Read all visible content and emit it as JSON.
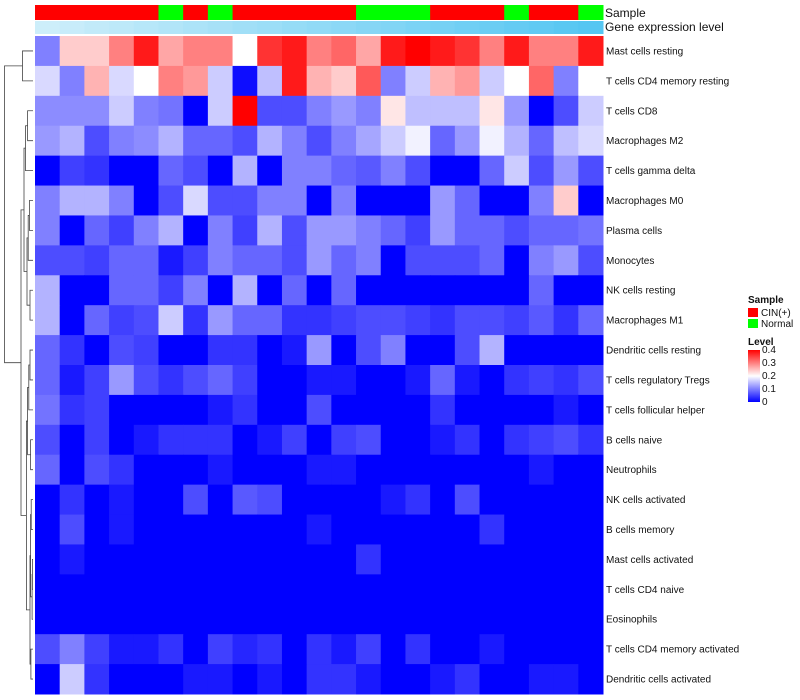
{
  "chart_data": {
    "type": "heatmap",
    "title": "",
    "annotation_tracks": [
      "Sample",
      "Gene expression level"
    ],
    "sample_groups": [
      "CIN",
      "CIN",
      "CIN",
      "CIN",
      "CIN",
      "Normal",
      "CIN",
      "Normal",
      "CIN",
      "CIN",
      "CIN",
      "CIN",
      "CIN",
      "Normal",
      "Normal",
      "Normal",
      "CIN",
      "CIN",
      "CIN",
      "Normal",
      "CIN",
      "CIN",
      "Normal"
    ],
    "rows": [
      "Mast cells resting",
      "T cells CD4 memory resting",
      "T cells CD8",
      "Macrophages M2",
      "T cells gamma delta",
      "Macrophages M0",
      "Plasma cells",
      "Monocytes",
      "NK cells resting",
      "Macrophages M1",
      "Dendritic cells resting",
      "T cells regulatory  Tregs",
      "T cells follicular helper",
      "B cells naive",
      "Neutrophils",
      "NK cells activated",
      "B cells memory",
      "Mast cells activated",
      "T cells CD4 naive",
      "Eosinophils",
      "T cells CD4 memory activated",
      "Dendritic cells activated"
    ],
    "values": [
      [
        0.1,
        0.24,
        0.24,
        0.3,
        0.38,
        0.27,
        0.3,
        0.3,
        0.2,
        0.36,
        0.38,
        0.3,
        0.32,
        0.27,
        0.38,
        0.4,
        0.38,
        0.36,
        0.3,
        0.38,
        0.3,
        0.3,
        0.38
      ],
      [
        0.17,
        0.1,
        0.26,
        0.17,
        0.2,
        0.3,
        0.28,
        0.16,
        0.01,
        0.15,
        0.38,
        0.26,
        0.24,
        0.33,
        0.1,
        0.16,
        0.26,
        0.28,
        0.16,
        0.2,
        0.32,
        0.1,
        0.2
      ],
      [
        0.11,
        0.11,
        0.11,
        0.16,
        0.1,
        0.09,
        0.0,
        0.16,
        0.4,
        0.06,
        0.06,
        0.1,
        0.12,
        0.1,
        0.22,
        0.15,
        0.15,
        0.15,
        0.22,
        0.12,
        0.0,
        0.06,
        0.16
      ],
      [
        0.12,
        0.14,
        0.06,
        0.1,
        0.11,
        0.14,
        0.08,
        0.08,
        0.06,
        0.14,
        0.1,
        0.06,
        0.1,
        0.13,
        0.16,
        0.19,
        0.08,
        0.12,
        0.19,
        0.14,
        0.08,
        0.15,
        0.17
      ],
      [
        0.0,
        0.05,
        0.04,
        0.0,
        0.0,
        0.08,
        0.06,
        0.0,
        0.14,
        0.0,
        0.1,
        0.1,
        0.08,
        0.07,
        0.1,
        0.06,
        0.0,
        0.0,
        0.08,
        0.16,
        0.06,
        0.12,
        0.06
      ],
      [
        0.1,
        0.14,
        0.14,
        0.1,
        0.0,
        0.06,
        0.17,
        0.06,
        0.06,
        0.1,
        0.1,
        0.0,
        0.1,
        0.0,
        0.0,
        0.0,
        0.12,
        0.08,
        0.0,
        0.0,
        0.1,
        0.24,
        0.0
      ],
      [
        0.1,
        0.0,
        0.08,
        0.05,
        0.1,
        0.14,
        0.0,
        0.1,
        0.05,
        0.14,
        0.06,
        0.12,
        0.12,
        0.1,
        0.08,
        0.05,
        0.12,
        0.08,
        0.08,
        0.06,
        0.08,
        0.08,
        0.09
      ],
      [
        0.06,
        0.06,
        0.05,
        0.08,
        0.08,
        0.02,
        0.05,
        0.1,
        0.08,
        0.08,
        0.06,
        0.12,
        0.08,
        0.1,
        0.0,
        0.06,
        0.06,
        0.06,
        0.08,
        0.0,
        0.1,
        0.12,
        0.06
      ],
      [
        0.14,
        0.0,
        0.0,
        0.08,
        0.08,
        0.05,
        0.1,
        0.0,
        0.14,
        0.0,
        0.08,
        0.0,
        0.08,
        0.0,
        0.0,
        0.0,
        0.0,
        0.0,
        0.0,
        0.0,
        0.08,
        0.0,
        0.0
      ],
      [
        0.14,
        0.0,
        0.08,
        0.05,
        0.06,
        0.16,
        0.04,
        0.12,
        0.08,
        0.08,
        0.04,
        0.04,
        0.05,
        0.06,
        0.06,
        0.05,
        0.04,
        0.06,
        0.06,
        0.05,
        0.07,
        0.04,
        0.08
      ],
      [
        0.08,
        0.04,
        0.0,
        0.06,
        0.05,
        0.0,
        0.0,
        0.04,
        0.04,
        0.0,
        0.02,
        0.12,
        0.0,
        0.06,
        0.1,
        0.0,
        0.0,
        0.06,
        0.14,
        0.0,
        0.0,
        0.0,
        0.0
      ],
      [
        0.08,
        0.02,
        0.05,
        0.12,
        0.06,
        0.04,
        0.06,
        0.08,
        0.05,
        0.0,
        0.0,
        0.02,
        0.02,
        0.0,
        0.0,
        0.02,
        0.08,
        0.02,
        0.0,
        0.04,
        0.05,
        0.04,
        0.06
      ],
      [
        0.09,
        0.04,
        0.05,
        0.0,
        0.0,
        0.0,
        0.0,
        0.02,
        0.04,
        0.0,
        0.0,
        0.06,
        0.0,
        0.0,
        0.0,
        0.0,
        0.04,
        0.0,
        0.0,
        0.0,
        0.0,
        0.02,
        0.0
      ],
      [
        0.06,
        0.0,
        0.05,
        0.0,
        0.02,
        0.04,
        0.04,
        0.04,
        0.0,
        0.02,
        0.05,
        0.0,
        0.05,
        0.06,
        0.0,
        0.0,
        0.02,
        0.04,
        0.0,
        0.04,
        0.05,
        0.06,
        0.04
      ],
      [
        0.08,
        0.0,
        0.06,
        0.04,
        0.0,
        0.0,
        0.0,
        0.02,
        0.0,
        0.0,
        0.0,
        0.02,
        0.02,
        0.0,
        0.0,
        0.0,
        0.0,
        0.0,
        0.0,
        0.0,
        0.02,
        0.0,
        0.0
      ],
      [
        0.0,
        0.04,
        0.0,
        0.02,
        0.0,
        0.0,
        0.06,
        0.0,
        0.07,
        0.06,
        0.0,
        0.0,
        0.0,
        0.0,
        0.02,
        0.04,
        0.0,
        0.06,
        0.0,
        0.0,
        0.0,
        0.0,
        0.0
      ],
      [
        0.0,
        0.06,
        0.0,
        0.02,
        0.0,
        0.0,
        0.0,
        0.0,
        0.0,
        0.0,
        0.0,
        0.02,
        0.0,
        0.0,
        0.0,
        0.0,
        0.0,
        0.0,
        0.04,
        0.0,
        0.0,
        0.0,
        0.0
      ],
      [
        0.0,
        0.02,
        0.0,
        0.0,
        0.0,
        0.0,
        0.0,
        0.0,
        0.0,
        0.0,
        0.0,
        0.0,
        0.0,
        0.04,
        0.0,
        0.0,
        0.0,
        0.0,
        0.0,
        0.0,
        0.0,
        0.0,
        0.0
      ],
      [
        0.0,
        0.0,
        0.0,
        0.0,
        0.0,
        0.0,
        0.0,
        0.0,
        0.0,
        0.0,
        0.0,
        0.0,
        0.0,
        0.0,
        0.0,
        0.0,
        0.0,
        0.0,
        0.0,
        0.0,
        0.0,
        0.0,
        0.0
      ],
      [
        0.0,
        0.0,
        0.0,
        0.0,
        0.0,
        0.0,
        0.0,
        0.0,
        0.0,
        0.0,
        0.0,
        0.0,
        0.0,
        0.0,
        0.0,
        0.0,
        0.0,
        0.0,
        0.0,
        0.0,
        0.0,
        0.0,
        0.0
      ],
      [
        0.06,
        0.1,
        0.05,
        0.02,
        0.02,
        0.04,
        0.0,
        0.05,
        0.03,
        0.04,
        0.0,
        0.04,
        0.02,
        0.05,
        0.0,
        0.04,
        0.0,
        0.0,
        0.02,
        0.0,
        0.0,
        0.0,
        0.0
      ],
      [
        0.0,
        0.16,
        0.04,
        0.0,
        0.0,
        0.0,
        0.02,
        0.02,
        0.0,
        0.02,
        0.0,
        0.04,
        0.04,
        0.02,
        0.0,
        0.0,
        0.02,
        0.04,
        0.0,
        0.0,
        0.02,
        0.02,
        0.0
      ]
    ],
    "color_scale": {
      "min": 0,
      "max": 0.4,
      "low": "#0000ff",
      "mid": "#ffffff",
      "high": "#ff0000",
      "ticks": [
        "0.4",
        "0.3",
        "0.2",
        "0.1",
        "0"
      ]
    },
    "legend": {
      "sample_title": "Sample",
      "sample_items": [
        {
          "label": "CIN(+)",
          "color": "#ff0000"
        },
        {
          "label": "Normal",
          "color": "#00ff00"
        }
      ],
      "level_title": "Level"
    },
    "group_colors": {
      "CIN": "#ff0000",
      "Normal": "#00ff00"
    },
    "gene_level_colors": [
      "#cdeefa",
      "#55c6f2"
    ]
  }
}
